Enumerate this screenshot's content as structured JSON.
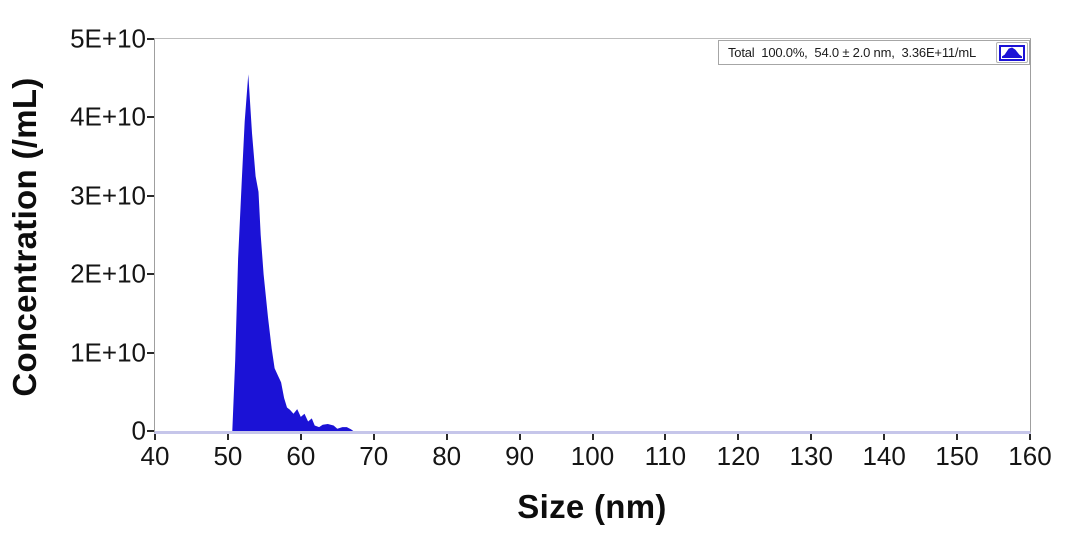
{
  "colors": {
    "series_blue": "#1b12d6",
    "axis_baseline": "#c6c6ea",
    "plot_border": "#9f9f9f",
    "legend_border": "#a6a6a6",
    "text": "#111111"
  },
  "legend": {
    "text": "Total  100.0%,  54.0 ± 2.0 nm,  3.36E+11/mL",
    "icon": "distribution-curve-icon"
  },
  "chart_data": {
    "type": "area",
    "title": "",
    "xlabel": "Size (nm)",
    "ylabel": "Concentration (/mL)",
    "xlim": [
      40,
      160
    ],
    "ylim": [
      0,
      50000000000.0
    ],
    "x_ticks": [
      40,
      50,
      60,
      70,
      80,
      90,
      100,
      110,
      120,
      130,
      140,
      150,
      160
    ],
    "y_ticks": [
      0,
      10000000000.0,
      20000000000.0,
      30000000000.0,
      40000000000.0,
      50000000000.0
    ],
    "y_tick_labels": [
      "0",
      "1E+10",
      "2E+10",
      "3E+10",
      "4E+10",
      "5E+10"
    ],
    "grid": false,
    "legend_position": "top-right",
    "series": [
      {
        "name": "Total",
        "percent_of_total": "100.0%",
        "mean_size": "54.0 ± 2.0 nm",
        "total_concentration": "3.36E+11/mL",
        "peak_size_nm": 53.0,
        "peak_concentration_per_ml": 45500000000.0,
        "x": [
          50.6,
          51.0,
          51.4,
          51.9,
          52.3,
          52.8,
          53.3,
          53.8,
          54.2,
          54.5,
          54.9,
          55.5,
          56.0,
          56.4,
          56.9,
          57.3,
          57.7,
          58.1,
          58.5,
          59.0,
          59.5,
          60.0,
          60.5,
          61.0,
          61.5,
          61.9,
          62.5,
          63.0,
          63.7,
          64.5,
          65.0,
          65.7,
          66.3,
          66.9,
          67.2
        ],
        "y": [
          0,
          9000000000.0,
          22000000000.0,
          32000000000.0,
          39500000000.0,
          45500000000.0,
          38000000000.0,
          32500000000.0,
          30500000000.0,
          25000000000.0,
          20000000000.0,
          14500000000.0,
          10500000000.0,
          8000000000.0,
          7000000000.0,
          6200000000.0,
          4200000000.0,
          3000000000.0,
          2700000000.0,
          2200000000.0,
          2800000000.0,
          1800000000.0,
          2200000000.0,
          1200000000.0,
          1600000000.0,
          700000000.0,
          500000000.0,
          800000000.0,
          900000000.0,
          700000000.0,
          300000000.0,
          500000000.0,
          500000000.0,
          200000000.0,
          0
        ]
      }
    ]
  }
}
